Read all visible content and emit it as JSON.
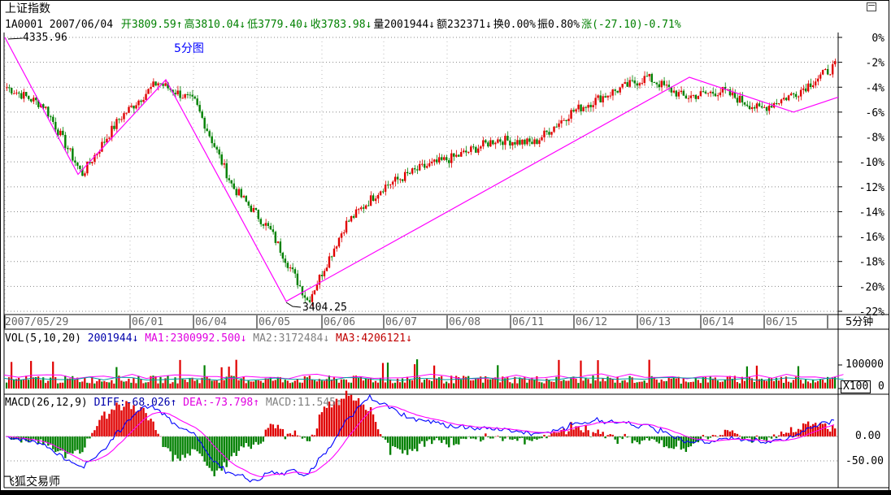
{
  "title": "上证指数",
  "header": {
    "code_date": "1A0001  2007/06/04",
    "open": "开3809.59↑",
    "high": "高3810.04↓",
    "low": "低3779.40↓",
    "close": "收3783.98↓",
    "volume": "量2001944↓",
    "amount": "额232371↓",
    "turnover": "换0.00%",
    "amplitude": "振0.80%",
    "change": "涨(-27.10)-0.71%"
  },
  "period_label": "5分图",
  "max_label": "4335.96",
  "min_label": "3404.25",
  "x_labels": [
    "2007/05/29",
    "06/01",
    "06/04",
    "06/05",
    "06/06",
    "06/07",
    "06/08",
    "06/11",
    "06/12",
    "06/13",
    "06/14",
    "06/15"
  ],
  "period_right": "5分钟",
  "vol_header": {
    "name": "VOL(5,10,20)",
    "value": "2001944↓",
    "ma1": "MA1:2300992.500↓",
    "ma2": "MA2:3172484↓",
    "ma3": "MA3:4206121↓"
  },
  "vol_axis": {
    "top": "100000",
    "bottom": "0",
    "unit": "X100"
  },
  "macd_header": {
    "name": "MACD(26,12,9)",
    "diff": "DIFF:-68.026↑",
    "dea": "DEA:-73.798↑",
    "macd": "MACD:11.545↑"
  },
  "macd_axis": [
    "0.00",
    "-50.00"
  ],
  "footer": "飞狐交易师",
  "colors": {
    "up": "#e00000",
    "down": "#008000",
    "magenta": "#ff00ff",
    "blue": "#0000ff"
  },
  "chart_data": [
    {
      "type": "line",
      "title": "上证指数",
      "subtitle": "5分图",
      "y_axis_labels": [
        "0%",
        "-2%",
        "-4%",
        "-6%",
        "-8%",
        "-10%",
        "-12%",
        "-14%",
        "-16%",
        "-18%",
        "-20%",
        "-22%"
      ],
      "ylim": [
        -22,
        0
      ],
      "x_ticks": [
        "2007/05/29",
        "06/01",
        "06/04",
        "06/05",
        "06/06",
        "06/07",
        "06/08",
        "06/11",
        "06/12",
        "06/13",
        "06/14",
        "06/15"
      ],
      "series": [
        {
          "values": [
            -4,
            -5.5,
            -11,
            -6.5,
            -3.6,
            -5.2,
            -12,
            -15.5,
            -21.2,
            -15,
            -12,
            -10.5,
            -9.5,
            -8.2,
            -8.5,
            -6,
            -4.5,
            -3.2,
            -4.8,
            -4.3,
            -5.8,
            -4.4,
            -2.3
          ]
        }
      ],
      "zigzag": [
        {
          "x": "2007/05/29",
          "y": 0
        },
        {
          "x": "05/30",
          "y": -11
        },
        {
          "x": "06/01",
          "y": -3.4
        },
        {
          "x": "06/05",
          "y": -21.2
        },
        {
          "x": "06/13",
          "y": -3.2
        },
        {
          "x": "06/15",
          "y": -6
        },
        {
          "x": "06/15",
          "y": -4.8
        }
      ],
      "annotations": [
        "4335.96",
        "3404.25"
      ]
    },
    {
      "type": "bar",
      "title": "VOL(5,10,20)",
      "ylim": [
        0,
        100000
      ]
    },
    {
      "type": "bar",
      "title": "MACD(26,12,9)",
      "y_axis_labels": [
        "0.00",
        "-50.00"
      ]
    }
  ]
}
